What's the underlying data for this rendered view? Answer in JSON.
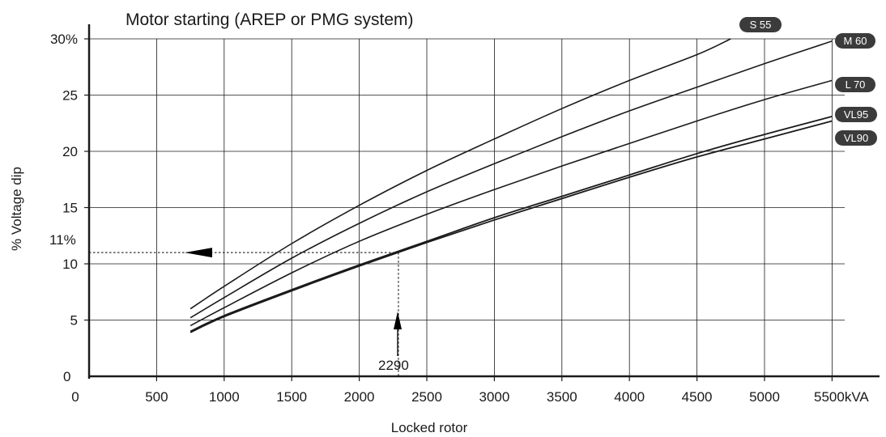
{
  "chart_data": {
    "type": "line",
    "title": "Motor starting (AREP or PMG system)",
    "xlabel": "Locked rotor",
    "ylabel": "% Voltage dip",
    "xlim": [
      0,
      5500
    ],
    "ylim": [
      0,
      30
    ],
    "x_ticks": [
      0,
      500,
      1000,
      1500,
      2000,
      2500,
      3000,
      3500,
      4000,
      4500,
      5000,
      5500
    ],
    "x_tick_labels": [
      "0",
      "500",
      "1000",
      "1500",
      "2000",
      "2500",
      "3000",
      "3500",
      "4000",
      "4500",
      "5000",
      "5500kVA"
    ],
    "y_ticks": [
      0,
      5,
      10,
      15,
      20,
      25,
      30
    ],
    "y_tick_labels": [
      "0",
      "5",
      "10",
      "15",
      "20",
      "25",
      "30%"
    ],
    "grid": true,
    "series": [
      {
        "name": "S 55",
        "x": [
          750,
          1000,
          1500,
          2000,
          2500,
          3000,
          3500,
          4000,
          4500,
          4750
        ],
        "y": [
          6.0,
          8.0,
          11.8,
          15.2,
          18.3,
          21.1,
          23.8,
          26.3,
          28.6,
          30.0
        ]
      },
      {
        "name": "M 60",
        "x": [
          750,
          1000,
          1500,
          2000,
          2500,
          3000,
          3500,
          4000,
          4500,
          5000,
          5500
        ],
        "y": [
          5.2,
          7.0,
          10.5,
          13.6,
          16.4,
          18.9,
          21.3,
          23.6,
          25.7,
          27.8,
          29.8
        ]
      },
      {
        "name": "L 70",
        "x": [
          750,
          1000,
          1500,
          2000,
          2500,
          3000,
          3500,
          4000,
          4500,
          5000,
          5500
        ],
        "y": [
          4.5,
          6.1,
          9.2,
          12.0,
          14.4,
          16.6,
          18.7,
          20.7,
          22.7,
          24.6,
          26.3
        ]
      },
      {
        "name": "VL95",
        "x": [
          750,
          1000,
          1500,
          2000,
          2500,
          3000,
          3500,
          4000,
          4500,
          5000,
          5500
        ],
        "y": [
          4.0,
          5.4,
          7.7,
          9.9,
          12.0,
          14.1,
          16.0,
          17.9,
          19.8,
          21.5,
          23.1
        ]
      },
      {
        "name": "VL90",
        "x": [
          750,
          1000,
          1500,
          2000,
          2500,
          3000,
          3500,
          4000,
          4500,
          5000,
          5500
        ],
        "y": [
          3.9,
          5.3,
          7.6,
          9.8,
          11.9,
          13.9,
          15.8,
          17.7,
          19.5,
          21.1,
          22.7
        ]
      }
    ],
    "annotations": {
      "example_x": 2290,
      "example_x_label": "2290",
      "example_y": 11,
      "example_y_label": "11%"
    }
  }
}
